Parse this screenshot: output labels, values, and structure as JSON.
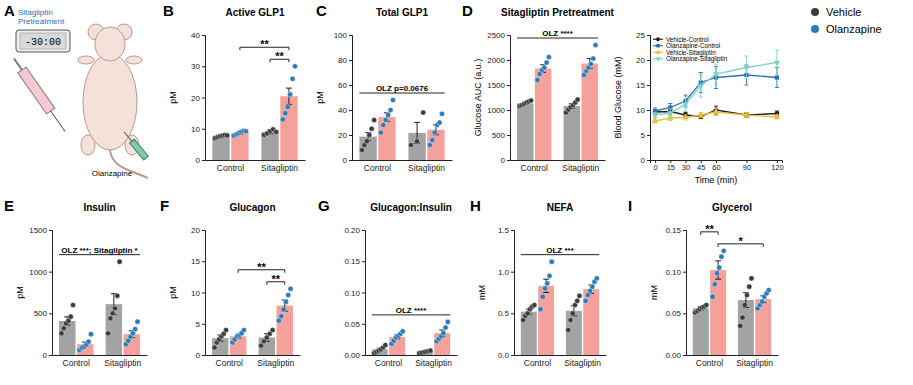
{
  "figure_legend": {
    "entries": [
      {
        "name": "Vehicle",
        "color": "#3b3b3b"
      },
      {
        "name": "Olanzapine",
        "color": "#2c7bb6"
      }
    ]
  },
  "diagram": {
    "panel": "A",
    "title_lines": [
      "Sitagliptin",
      "Pretreatment"
    ],
    "timer": "-30:00",
    "injection": "Olanzapine"
  },
  "chart_data": [
    {
      "type": "bar",
      "panel": "B",
      "title": "Active GLP1",
      "y_label": "pM",
      "categories": [
        "Control",
        "Sitagliptin"
      ],
      "ylim": [
        0,
        40
      ],
      "yticks": [
        0,
        10,
        20,
        30,
        40
      ],
      "series": [
        {
          "color": "#a3a3a3",
          "values": [
            7.6,
            9.0
          ],
          "errors": [
            0.3,
            0.6
          ],
          "points": [
            [
              7.0,
              7.3,
              7.6,
              7.8,
              8.0,
              7.9
            ],
            [
              8.0,
              8.5,
              9.2,
              9.8,
              9.0
            ]
          ]
        },
        {
          "color": "#f4a19c",
          "values": [
            8.7,
            20.4
          ],
          "errors": [
            0.5,
            2.6
          ],
          "points": [
            [
              7.8,
              8.2,
              8.6,
              9.0,
              9.3,
              9.2
            ],
            [
              13,
              15,
              17,
              21,
              26,
              30
            ]
          ]
        }
      ],
      "annotations": [
        {
          "text": "**",
          "from": [
            1,
            0
          ],
          "to": [
            1,
            1
          ]
        },
        {
          "text": "**",
          "from": [
            0,
            1
          ],
          "to": [
            1,
            1
          ]
        }
      ]
    },
    {
      "type": "bar",
      "panel": "C",
      "title": "Total GLP1",
      "y_label": "pM",
      "categories": [
        "Control",
        "Sitagliptin"
      ],
      "ylim": [
        0,
        100
      ],
      "yticks": [
        0,
        20,
        40,
        60,
        80,
        100
      ],
      "series": [
        {
          "color": "#a3a3a3",
          "values": [
            18.7,
            21.7
          ],
          "errors": [
            3.2,
            8.4
          ],
          "points": [
            [
              8,
              12,
              15,
              20,
              25,
              32
            ],
            [
              12,
              15,
              38
            ]
          ]
        },
        {
          "color": "#f4a19c",
          "values": [
            34.3,
            24.2
          ],
          "errors": [
            3.4,
            4.0
          ],
          "points": [
            [
              22,
              28,
              32,
              36,
              40,
              48
            ],
            [
              12,
              16,
              22,
              28,
              30,
              37
            ]
          ]
        }
      ],
      "annotations": [
        {
          "text": "OLZ p=0.0676",
          "from": [
            0,
            0
          ],
          "to": [
            1,
            1
          ]
        }
      ]
    },
    {
      "type": "bar",
      "panel": "D",
      "title": "Sitagliptin Pretreatment",
      "y_label": "Glucose AUC (a.u.)",
      "categories": [
        "Control",
        "Sitagliptin"
      ],
      "ylim": [
        0,
        2500
      ],
      "yticks": [
        0,
        500,
        1000,
        1500,
        2000,
        2500
      ],
      "series": [
        {
          "color": "#a3a3a3",
          "values": [
            1135,
            1080
          ],
          "errors": [
            25,
            45
          ],
          "points": [
            [
              1080,
              1100,
              1120,
              1150,
              1170,
              1190
            ],
            [
              950,
              1010,
              1060,
              1100,
              1150,
              1210
            ]
          ]
        },
        {
          "color": "#f4a19c",
          "values": [
            1830,
            1930
          ],
          "errors": [
            75,
            100
          ],
          "points": [
            [
              1600,
              1720,
              1800,
              1850,
              1950,
              2060
            ],
            [
              1700,
              1780,
              1850,
              1920,
              2030,
              2300
            ]
          ]
        }
      ],
      "annotations": [
        {
          "text": "OLZ ****",
          "from": [
            0,
            0
          ],
          "to": [
            1,
            1
          ]
        }
      ]
    },
    {
      "type": "line",
      "x_label": "Time (min)",
      "y_label": "Blood Glucose (mM)",
      "x": [
        0,
        15,
        30,
        45,
        60,
        90,
        120
      ],
      "xlim": [
        -5,
        125
      ],
      "xticks": [
        0,
        15,
        30,
        45,
        60,
        90,
        120
      ],
      "ylim": [
        0,
        25
      ],
      "yticks": [
        0,
        5,
        10,
        15,
        20,
        25
      ],
      "legend": "top-left",
      "series": [
        {
          "name": "Vehicle-Control",
          "color": "#222222",
          "marker": "circle",
          "values": [
            9.6,
            9.7,
            9.0,
            8.7,
            10.0,
            9.0,
            9.3
          ],
          "errors": [
            0.4,
            0.5,
            0.5,
            0.4,
            0.8,
            0.5,
            0.5
          ]
        },
        {
          "name": "Olanzapine-Control",
          "color": "#2f6fb5",
          "marker": "square",
          "values": [
            9.8,
            10.5,
            11.8,
            15.5,
            16.5,
            17.0,
            16.5
          ],
          "errors": [
            0.6,
            0.8,
            1.2,
            2.0,
            2.2,
            2.0,
            2.0
          ]
        },
        {
          "name": "Vehicle-Sitagliptin",
          "color": "#e6c03a",
          "marker": "triangle",
          "values": [
            7.8,
            8.4,
            8.5,
            9.0,
            9.6,
            9.0,
            8.6
          ],
          "errors": [
            0.4,
            0.5,
            0.5,
            0.5,
            0.7,
            0.5,
            0.4
          ]
        },
        {
          "name": "Olanzapine-Sitagliptin",
          "color": "#7ed3c0",
          "marker": "triangle-down",
          "values": [
            9.0,
            9.4,
            11.2,
            14.8,
            17.2,
            18.5,
            19.5
          ],
          "errors": [
            0.5,
            0.8,
            1.5,
            2.2,
            2.0,
            2.3,
            2.5
          ]
        }
      ]
    },
    {
      "type": "bar",
      "panel": "E",
      "title": "Insulin",
      "y_label": "pM",
      "categories": [
        "Control",
        "Sitagliptin"
      ],
      "ylim": [
        0,
        1500
      ],
      "yticks": [
        0,
        500,
        1000,
        1500
      ],
      "series": [
        {
          "color": "#a3a3a3",
          "values": [
            408,
            610
          ],
          "errors": [
            50,
            125
          ],
          "points": [
            [
              260,
              320,
              380,
              410,
              460,
              600
            ],
            [
              260,
              440,
              500,
              560,
              710,
              1120
            ]
          ]
        },
        {
          "color": "#f4a19c",
          "values": [
            130,
            250
          ],
          "errors": [
            25,
            40
          ],
          "points": [
            [
              60,
              85,
              100,
              125,
              160,
              250
            ],
            [
              130,
              170,
              220,
              260,
              310,
              400
            ]
          ]
        }
      ],
      "annotations": [
        {
          "text": "OLZ ***; Sitagliptin *",
          "from": [
            0,
            0
          ],
          "to": [
            1,
            1
          ]
        }
      ]
    },
    {
      "type": "bar",
      "panel": "F",
      "title": "Glucagon",
      "y_label": "pM",
      "categories": [
        "Control",
        "Sitagliptin"
      ],
      "ylim": [
        0,
        20
      ],
      "yticks": [
        0,
        5,
        10,
        15,
        20
      ],
      "series": [
        {
          "color": "#a3a3a3",
          "values": [
            2.7,
            2.8
          ],
          "errors": [
            0.5,
            0.6
          ],
          "points": [
            [
              1.2,
              2.0,
              2.5,
              3.0,
              3.4,
              4.0
            ],
            [
              1.5,
              2.2,
              2.8,
              3.4,
              4.0
            ]
          ]
        },
        {
          "color": "#f4a19c",
          "values": [
            3.0,
            7.9
          ],
          "errors": [
            0.3,
            0.9
          ],
          "points": [
            [
              2.0,
              2.5,
              3.0,
              3.2,
              3.5,
              4.0
            ],
            [
              5.5,
              6.2,
              7.3,
              8.5,
              9.6,
              10.6
            ]
          ]
        }
      ],
      "annotations": [
        {
          "text": "**",
          "from": [
            1,
            0
          ],
          "to": [
            1,
            1
          ]
        },
        {
          "text": "**",
          "from": [
            0,
            1
          ],
          "to": [
            1,
            1
          ]
        }
      ]
    },
    {
      "type": "bar",
      "panel": "G",
      "title": "Glucagon:Insulin",
      "categories": [
        "Control",
        "Sitagliptin"
      ],
      "ylim": [
        0,
        0.2
      ],
      "yticks": [
        {
          "value": 0,
          "label": "0.00"
        },
        0.05,
        {
          "value": 0.1,
          "label": "0.10"
        },
        0.15,
        {
          "value": 0.2,
          "label": "0.20"
        }
      ],
      "series": [
        {
          "color": "#a3a3a3",
          "values": [
            0.009,
            0.005
          ],
          "errors": [
            0.002,
            0.001
          ],
          "points": [
            [
              0.003,
              0.005,
              0.007,
              0.009,
              0.012,
              0.016
            ],
            [
              0.003,
              0.004,
              0.005,
              0.006,
              0.007
            ]
          ]
        },
        {
          "color": "#f4a19c",
          "values": [
            0.029,
            0.035
          ],
          "errors": [
            0.003,
            0.005
          ],
          "points": [
            [
              0.018,
              0.023,
              0.028,
              0.031,
              0.034,
              0.038
            ],
            [
              0.022,
              0.026,
              0.03,
              0.035,
              0.044,
              0.053
            ]
          ]
        }
      ],
      "annotations": [
        {
          "text": "OLZ ****",
          "from": [
            0,
            0
          ],
          "to": [
            1,
            1
          ]
        }
      ]
    },
    {
      "type": "bar",
      "panel": "H",
      "title": "NEFA",
      "y_label": "mM",
      "categories": [
        "Control",
        "Sitagliptin"
      ],
      "ylim": [
        0,
        1.5
      ],
      "yticks": [
        {
          "value": 0,
          "label": "0.0"
        },
        0.5,
        {
          "value": 1,
          "label": "1.0"
        },
        1.5
      ],
      "series": [
        {
          "color": "#a3a3a3",
          "values": [
            0.52,
            0.53
          ],
          "errors": [
            0.03,
            0.06
          ],
          "points": [
            [
              0.42,
              0.47,
              0.5,
              0.55,
              0.58,
              0.6
            ],
            [
              0.3,
              0.42,
              0.5,
              0.6,
              0.65,
              0.71
            ]
          ]
        },
        {
          "color": "#f4a19c",
          "values": [
            0.83,
            0.79
          ],
          "errors": [
            0.08,
            0.05
          ],
          "points": [
            [
              0.55,
              0.7,
              0.8,
              0.86,
              0.95,
              1.12
            ],
            [
              0.65,
              0.72,
              0.77,
              0.82,
              0.88,
              0.92
            ]
          ]
        }
      ],
      "annotations": [
        {
          "text": "OLZ ***",
          "from": [
            0,
            0
          ],
          "to": [
            1,
            1
          ]
        }
      ]
    },
    {
      "type": "bar",
      "panel": "I",
      "title": "Glycerol",
      "y_label": "mM",
      "categories": [
        "Control",
        "Sitagliptin"
      ],
      "ylim": [
        0,
        0.15
      ],
      "yticks": [
        {
          "value": 0,
          "label": "0.00"
        },
        0.05,
        {
          "value": 0.1,
          "label": "0.10"
        },
        0.15
      ],
      "series": [
        {
          "color": "#a3a3a3",
          "values": [
            0.056,
            0.066
          ],
          "errors": [
            0.002,
            0.009
          ],
          "points": [
            [
              0.051,
              0.053,
              0.055,
              0.057,
              0.058,
              0.06
            ],
            [
              0.035,
              0.045,
              0.06,
              0.072,
              0.082,
              0.092
            ]
          ]
        },
        {
          "color": "#f4a19c",
          "values": [
            0.102,
            0.067
          ],
          "errors": [
            0.011,
            0.004
          ],
          "points": [
            [
              0.07,
              0.085,
              0.098,
              0.105,
              0.118,
              0.125
            ],
            [
              0.056,
              0.06,
              0.064,
              0.07,
              0.074,
              0.078
            ]
          ]
        }
      ],
      "annotations": [
        {
          "text": "*",
          "from": [
            0,
            1
          ],
          "to": [
            1,
            1
          ]
        },
        {
          "text": "**",
          "from": [
            0,
            0
          ],
          "to": [
            0,
            1
          ]
        }
      ]
    }
  ]
}
